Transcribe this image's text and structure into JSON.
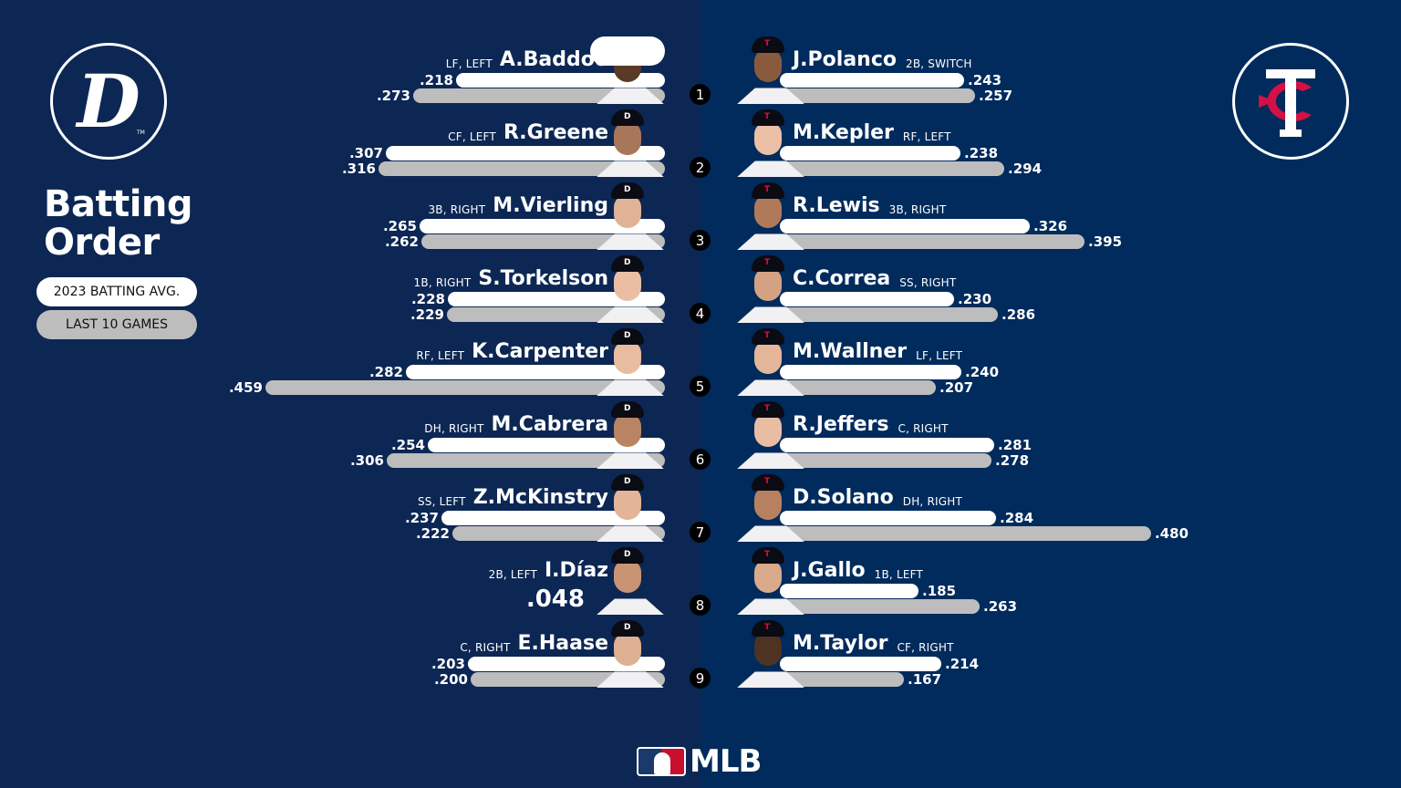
{
  "title": "Batting\nOrder",
  "title_lines": [
    "Batting",
    "Order"
  ],
  "legend": {
    "season": "2023 BATTING AVG.",
    "last10": "LAST 10 GAMES"
  },
  "colors": {
    "left_bg": "#0c2754",
    "right_bg": "#002b5c",
    "season_bar": "#ffffff",
    "last10_bar": "#bdbdbd",
    "twins_red": "#d31145"
  },
  "teams": {
    "away": {
      "name": "Detroit Tigers",
      "logo_glyph": "D",
      "cap_glyph": "D"
    },
    "home": {
      "name": "Minnesota Twins",
      "logo_glyph": "TC",
      "cap_glyph": "T"
    }
  },
  "footer": {
    "brand": "MLB"
  },
  "tigers": [
    {
      "order": "1",
      "name": "A.Baddoo",
      "pos": "LF, LEFT",
      "season": ".218",
      "last10": ".273",
      "sw": 229,
      "lw": 276,
      "skin": "#5a3a26"
    },
    {
      "order": "2",
      "name": "R.Greene",
      "pos": "CF, LEFT",
      "season": ".307",
      "last10": ".316",
      "sw": 306,
      "lw": 314,
      "skin": "#a8775a"
    },
    {
      "order": "3",
      "name": "M.Vierling",
      "pos": "3B, RIGHT",
      "season": ".265",
      "last10": ".262",
      "sw": 269,
      "lw": 267,
      "skin": "#e0b396"
    },
    {
      "order": "4",
      "name": "S.Torkelson",
      "pos": "1B, RIGHT",
      "season": ".228",
      "last10": ".229",
      "sw": 238,
      "lw": 239,
      "skin": "#ebbea4"
    },
    {
      "order": "5",
      "name": "K.Carpenter",
      "pos": "RF, LEFT",
      "season": ".282",
      "last10": ".459",
      "sw": 284,
      "lw": 438,
      "skin": "#e8bca0"
    },
    {
      "order": "6",
      "name": "M.Cabrera",
      "pos": "DH, RIGHT",
      "season": ".254",
      "last10": ".306",
      "sw": 260,
      "lw": 305,
      "skin": "#b88463"
    },
    {
      "order": "7",
      "name": "Z.McKinstry",
      "pos": "SS, LEFT",
      "season": ".237",
      "last10": ".222",
      "sw": 245,
      "lw": 233,
      "skin": "#e3b497"
    },
    {
      "order": "8",
      "name": "I.Díaz",
      "pos": "2B, LEFT",
      "season": ".048",
      "last10": "",
      "sw": 82,
      "lw": 0,
      "skin": "#c99474"
    },
    {
      "order": "9",
      "name": "E.Haase",
      "pos": "C, RIGHT",
      "season": ".203",
      "last10": ".200",
      "sw": 216,
      "lw": 213,
      "skin": "#ddb092"
    }
  ],
  "twins": [
    {
      "order": "1",
      "name": "J.Polanco",
      "pos": "2B, SWITCH",
      "season": ".243",
      "last10": ".257",
      "sw": 202,
      "lw": 214,
      "skin": "#8a5a3e"
    },
    {
      "order": "2",
      "name": "M.Kepler",
      "pos": "RF, LEFT",
      "season": ".238",
      "last10": ".294",
      "sw": 198,
      "lw": 246,
      "skin": "#ebc0a6"
    },
    {
      "order": "3",
      "name": "R.Lewis",
      "pos": "3B, RIGHT",
      "season": ".326",
      "last10": ".395",
      "sw": 274,
      "lw": 334,
      "skin": "#b07a5a"
    },
    {
      "order": "4",
      "name": "C.Correa",
      "pos": "SS, RIGHT",
      "season": ".230",
      "last10": ".286",
      "sw": 191,
      "lw": 239,
      "skin": "#d3a282"
    },
    {
      "order": "5",
      "name": "M.Wallner",
      "pos": "LF, LEFT",
      "season": ".240",
      "last10": ".207",
      "sw": 199,
      "lw": 171,
      "skin": "#e5b79a"
    },
    {
      "order": "6",
      "name": "R.Jeffers",
      "pos": "C, RIGHT",
      "season": ".281",
      "last10": ".278",
      "sw": 235,
      "lw": 232,
      "skin": "#e9bda2"
    },
    {
      "order": "7",
      "name": "D.Solano",
      "pos": "DH, RIGHT",
      "season": ".284",
      "last10": ".480",
      "sw": 237,
      "lw": 407,
      "skin": "#b78160"
    },
    {
      "order": "8",
      "name": "J.Gallo",
      "pos": "1B, LEFT",
      "season": ".185",
      "last10": ".263",
      "sw": 152,
      "lw": 219,
      "skin": "#d9a98b"
    },
    {
      "order": "9",
      "name": "M.Taylor",
      "pos": "CF, RIGHT",
      "season": ".214",
      "last10": ".167",
      "sw": 177,
      "lw": 136,
      "skin": "#4e3222"
    }
  ]
}
